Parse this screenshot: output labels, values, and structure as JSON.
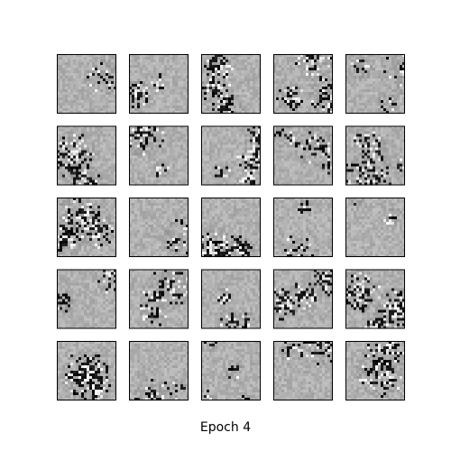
{
  "figure": {
    "caption": "Epoch 4",
    "grid": {
      "rows": 5,
      "cols": 5
    },
    "colors": {
      "background": "#ffffff",
      "frame": "#000000",
      "tile_base_gray": "#a8a8a8"
    },
    "samples": [
      {
        "row": 0,
        "col": 0,
        "dark_level": 0.02
      },
      {
        "row": 0,
        "col": 1,
        "dark_level": 0.45
      },
      {
        "row": 0,
        "col": 2,
        "dark_level": 0.55
      },
      {
        "row": 0,
        "col": 3,
        "dark_level": 0.4
      },
      {
        "row": 0,
        "col": 4,
        "dark_level": 0.2
      },
      {
        "row": 1,
        "col": 0,
        "dark_level": 0.4
      },
      {
        "row": 1,
        "col": 1,
        "dark_level": 0.45
      },
      {
        "row": 1,
        "col": 2,
        "dark_level": 0.5
      },
      {
        "row": 1,
        "col": 3,
        "dark_level": 0.25
      },
      {
        "row": 1,
        "col": 4,
        "dark_level": 0.4
      },
      {
        "row": 2,
        "col": 0,
        "dark_level": 0.45
      },
      {
        "row": 2,
        "col": 1,
        "dark_level": 0.1
      },
      {
        "row": 2,
        "col": 2,
        "dark_level": 0.6
      },
      {
        "row": 2,
        "col": 3,
        "dark_level": 0.45
      },
      {
        "row": 2,
        "col": 4,
        "dark_level": 0.25
      },
      {
        "row": 3,
        "col": 0,
        "dark_level": 0.45
      },
      {
        "row": 3,
        "col": 1,
        "dark_level": 0.35
      },
      {
        "row": 3,
        "col": 2,
        "dark_level": 0.4
      },
      {
        "row": 3,
        "col": 3,
        "dark_level": 0.55
      },
      {
        "row": 3,
        "col": 4,
        "dark_level": 0.6
      },
      {
        "row": 4,
        "col": 0,
        "dark_level": 0.7
      },
      {
        "row": 4,
        "col": 1,
        "dark_level": 0.3
      },
      {
        "row": 4,
        "col": 2,
        "dark_level": 0.25
      },
      {
        "row": 4,
        "col": 3,
        "dark_level": 0.3
      },
      {
        "row": 4,
        "col": 4,
        "dark_level": 0.35
      }
    ]
  }
}
